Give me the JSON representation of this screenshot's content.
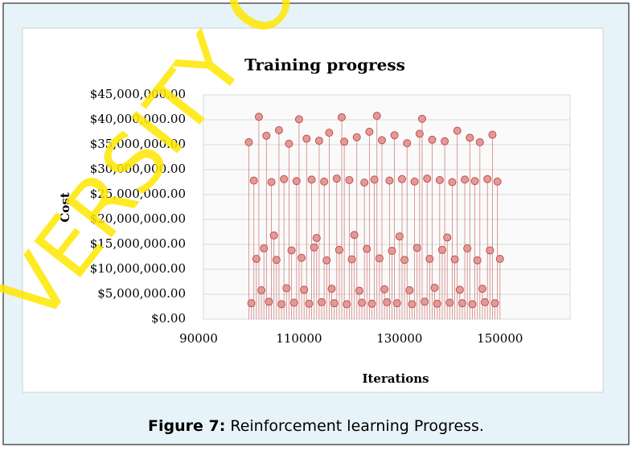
{
  "chart_data": {
    "type": "scatter",
    "title": "Training progress",
    "xlabel": "Iterations",
    "ylabel": "Cost",
    "xlim": [
      90000,
      163000
    ],
    "xticks": [
      90000,
      110000,
      130000,
      150000
    ],
    "ylim": [
      0,
      45000000
    ],
    "yticks": [
      {
        "value": 0,
        "label": "$0.00"
      },
      {
        "value": 5000000,
        "label": "$5,000,000.00"
      },
      {
        "value": 10000000,
        "label": "$10,000,000.00"
      },
      {
        "value": 15000000,
        "label": "$15,000,000.00"
      },
      {
        "value": 20000000,
        "label": "$20,000,000.00"
      },
      {
        "value": 25000000,
        "label": "$25,000,000.00"
      },
      {
        "value": 30000000,
        "label": "$30,000,000.00"
      },
      {
        "value": 35000000,
        "label": "$35,000,000.00"
      },
      {
        "value": 40000000,
        "label": "$40,000,000.00"
      },
      {
        "value": 45000000,
        "label": "$45,000,000.00"
      }
    ],
    "grid": true,
    "color": "#c0504d",
    "x": [
      100000,
      100500,
      101000,
      101500,
      102000,
      102500,
      103000,
      103500,
      104000,
      104500,
      105000,
      105500,
      106000,
      106500,
      107000,
      107500,
      108000,
      108500,
      109000,
      109500,
      110000,
      110500,
      111000,
      111500,
      112000,
      112500,
      113000,
      113500,
      114000,
      114500,
      115000,
      115500,
      116000,
      116500,
      117000,
      117500,
      118000,
      118500,
      119000,
      119500,
      120000,
      120500,
      121000,
      121500,
      122000,
      122500,
      123000,
      123500,
      124000,
      124500,
      125000,
      125500,
      126000,
      126500,
      127000,
      127500,
      128000,
      128500,
      129000,
      129500,
      130000,
      130500,
      131000,
      131500,
      132000,
      132500,
      133000,
      133500,
      134000,
      134500,
      135000,
      135500,
      136000,
      136500,
      137000,
      137500,
      138000,
      138500,
      139000,
      139500,
      140000,
      140500,
      141000,
      141500,
      142000,
      142500,
      143000,
      143500,
      144000,
      144500,
      145000,
      145500,
      146000,
      146500,
      147000,
      147500,
      148000,
      148500,
      149000,
      149500,
      150000
    ],
    "values": [
      35500000,
      3200000,
      27800000,
      12100000,
      40600000,
      5800000,
      14200000,
      36800000,
      3500000,
      27500000,
      16800000,
      11900000,
      37900000,
      3000000,
      28100000,
      6200000,
      35200000,
      13800000,
      3300000,
      27700000,
      40100000,
      12300000,
      5900000,
      36200000,
      3100000,
      28000000,
      14400000,
      16300000,
      35800000,
      3400000,
      27600000,
      11800000,
      37400000,
      6100000,
      3200000,
      28200000,
      13900000,
      40500000,
      35600000,
      3000000,
      27900000,
      12000000,
      16900000,
      36500000,
      5700000,
      3300000,
      27400000,
      14100000,
      37600000,
      3100000,
      28000000,
      40800000,
      12200000,
      35900000,
      6000000,
      3400000,
      27800000,
      13700000,
      36900000,
      3200000,
      16600000,
      28100000,
      11900000,
      35300000,
      5800000,
      3000000,
      27600000,
      14300000,
      37200000,
      40200000,
      3500000,
      28200000,
      12100000,
      36000000,
      6300000,
      3100000,
      27900000,
      13900000,
      35700000,
      16400000,
      3300000,
      27500000,
      12000000,
      37800000,
      5900000,
      3200000,
      28000000,
      14200000,
      36400000,
      3000000,
      27700000,
      11800000,
      35500000,
      6100000,
      3400000,
      28100000,
      13800000,
      37000000,
      3200000,
      27600000,
      12100000
    ]
  },
  "caption": {
    "label": "Figure 7:",
    "text": " Reinforcement learning Progress."
  },
  "watermark": "VERSITY O"
}
